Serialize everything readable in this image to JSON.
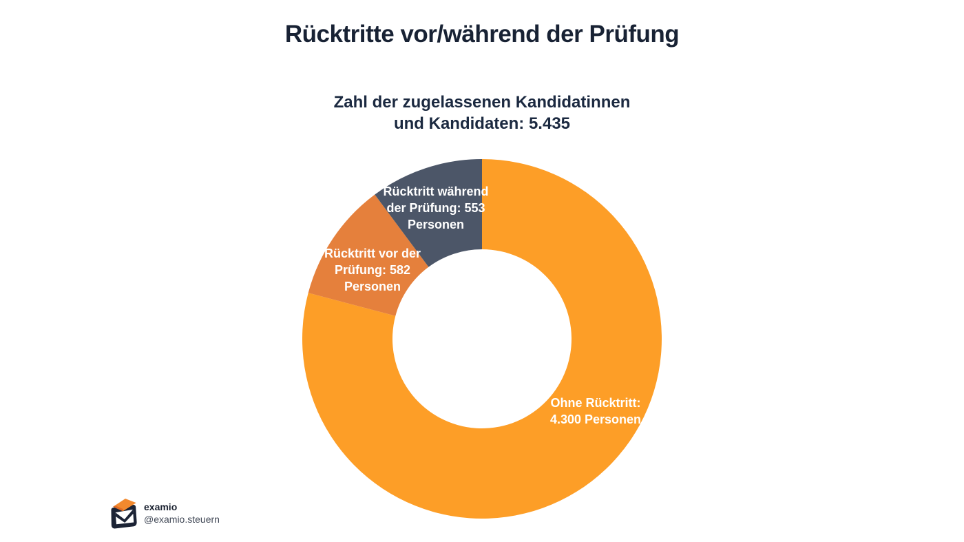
{
  "header": {
    "title": "Rücktritte vor/während der Prüfung"
  },
  "chart_data": {
    "type": "pie",
    "donut": true,
    "title": "Rücktritte vor/während der Prüfung",
    "subtitle_lines": [
      "Zahl der zugelassenen Kandidatinnen",
      "und Kandidaten: 5.435"
    ],
    "total_admitted": 5435,
    "start_angle_deg": 0,
    "direction": "clockwise",
    "inner_radius_ratio": 0.498,
    "legend_position": "labels-on-slices",
    "label_text_color": "#FFFFFF",
    "slices": [
      {
        "name": "Ohne Rücktritt",
        "value": 4300,
        "unit": "Personen",
        "color": "#FD9E27",
        "label_lines": [
          "Ohne Rücktritt:",
          "4.300 Personen"
        ]
      },
      {
        "name": "Rücktritt vor der Prüfung",
        "value": 582,
        "unit": "Personen",
        "color": "#E5803C",
        "label_lines": [
          "Rücktritt vor der",
          "Prüfung: 582",
          "Personen"
        ]
      },
      {
        "name": "Rücktritt während der Prüfung",
        "value": 553,
        "unit": "Personen",
        "color": "#4C5668",
        "label_lines": [
          "Rücktritt während",
          "der Prüfung: 553",
          "Personen"
        ]
      }
    ]
  },
  "footer": {
    "brand": "examio",
    "handle": "@examio.steuern"
  },
  "colors": {
    "background": "#FFFFFF",
    "title": "#182234",
    "accent_orange": "#FD9E27",
    "accent_dark_orange": "#E5803C",
    "accent_slate": "#4C5668"
  }
}
